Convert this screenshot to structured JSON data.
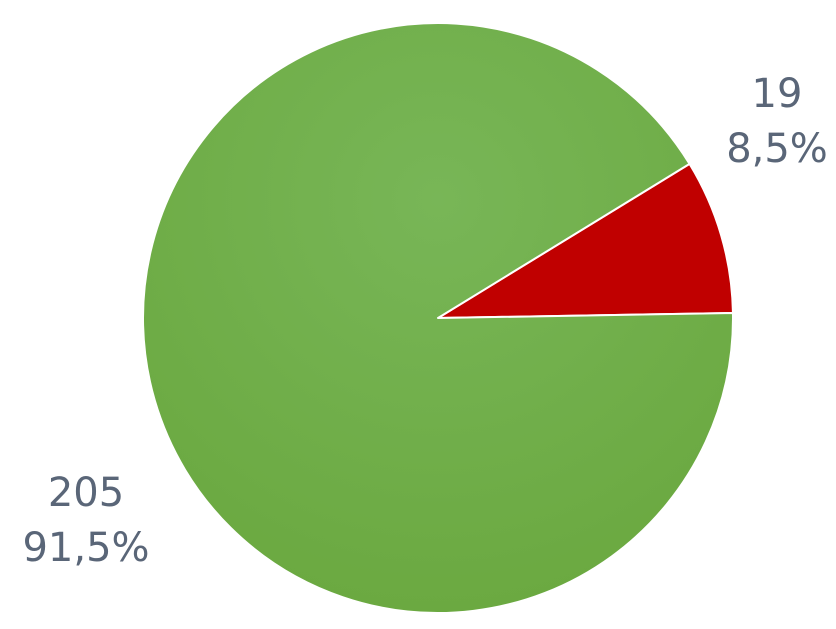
{
  "chart_data": {
    "type": "pie",
    "title": "",
    "start_angle_deg": 58.5,
    "direction": "clockwise",
    "slices": [
      {
        "value": 19,
        "percent_label": "8,5%",
        "value_label": "19",
        "color": "#c00000",
        "label_position": "upper-right"
      },
      {
        "value": 205,
        "percent_label": "91,5%",
        "value_label": "205",
        "color": "#70ad47",
        "label_position": "lower-left"
      }
    ],
    "legend": "none",
    "label_color": "#5a6678",
    "slice_border_color": "#ffffff"
  }
}
